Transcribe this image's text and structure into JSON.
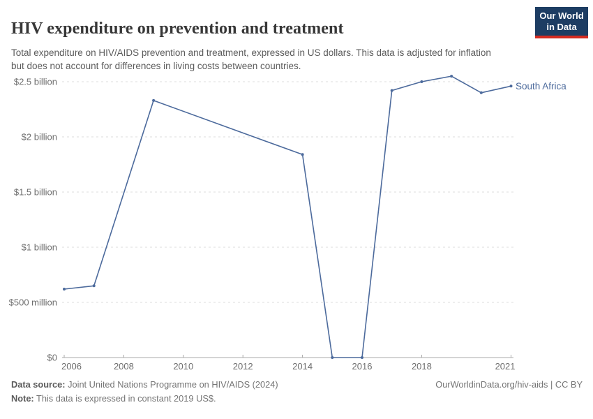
{
  "header": {
    "title": "HIV expenditure on prevention and treatment",
    "subtitle": "Total expenditure on HIV/AIDS prevention and treatment, expressed in US dollars. This data is adjusted for inflation but does not account for differences in living costs between countries.",
    "logo": {
      "line1": "Our World",
      "line2": "in Data"
    }
  },
  "chart_data": {
    "type": "line",
    "title": "HIV expenditure on prevention and treatment",
    "xlabel": "",
    "ylabel": "US dollars (constant 2019 US$)",
    "xlim": [
      2006,
      2021
    ],
    "ylim": [
      0,
      2.55
    ],
    "grid": "horizontal-dashed",
    "legend_position": "end-of-line-label",
    "x_ticks": [
      2006,
      2008,
      2010,
      2012,
      2014,
      2016,
      2018,
      2021
    ],
    "y_ticks": [
      {
        "v": 0,
        "label": "$0"
      },
      {
        "v": 0.5,
        "label": "$500 million"
      },
      {
        "v": 1,
        "label": "$1 billion"
      },
      {
        "v": 1.5,
        "label": "$1.5 billion"
      },
      {
        "v": 2,
        "label": "$2 billion"
      },
      {
        "v": 2.5,
        "label": "$2.5 billion"
      }
    ],
    "unit": "billion US$",
    "series": [
      {
        "name": "South Africa",
        "color": "#4c6a9c",
        "points": [
          [
            2006,
            0.62
          ],
          [
            2007,
            0.65
          ],
          [
            2009,
            2.33
          ],
          [
            2014,
            1.84
          ],
          [
            2015,
            0
          ],
          [
            2016,
            0
          ],
          [
            2017,
            2.42
          ],
          [
            2018,
            2.5
          ],
          [
            2019,
            2.55
          ],
          [
            2020,
            2.4
          ],
          [
            2021,
            2.46
          ]
        ]
      }
    ]
  },
  "footer": {
    "source_label": "Data source:",
    "source_text": " Joint United Nations Programme on HIV/AIDS (2024)",
    "note_label": "Note:",
    "note_text": " This data is expressed in constant 2019 US$.",
    "right_text": "OurWorldinData.org/hiv-aids | CC BY"
  }
}
